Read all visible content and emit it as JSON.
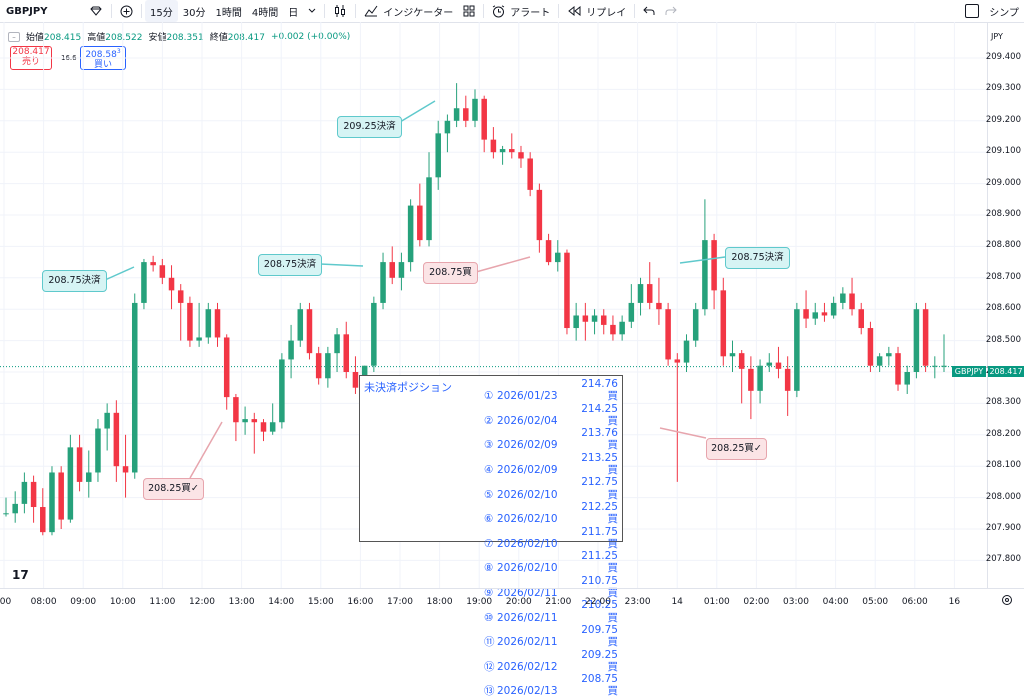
{
  "toolbar": {
    "symbol": "GBPJPY",
    "timeframes": [
      "15分",
      "30分",
      "1時間",
      "4時間",
      "日"
    ],
    "active_timeframe": 0,
    "indicators_label": "インジケーター",
    "alert_label": "アラート",
    "replay_label": "リプレイ",
    "simple_label": "シンプ"
  },
  "ohlc": {
    "open_label": "始値",
    "open": "208.415",
    "high_label": "高値",
    "high": "208.522",
    "low_label": "安値",
    "low": "208.351",
    "close_label": "終値",
    "close": "208.417",
    "change": "+0.002 (+0.00%)"
  },
  "trade": {
    "sell_price": "208.417",
    "sell_label": "売り",
    "spread": "16.6",
    "buy_price": "208.58",
    "buy_sup": "3",
    "buy_label": "買い"
  },
  "price_axis": {
    "currency": "JPY",
    "ticks": [
      "209.400",
      "209.300",
      "209.200",
      "209.100",
      "209.000",
      "208.900",
      "208.800",
      "208.700",
      "208.600",
      "208.500",
      "208.400",
      "208.300",
      "208.200",
      "208.100",
      "208.000",
      "207.900",
      "207.800"
    ],
    "current_symbol": "GBPJPY",
    "current_price": "208.417"
  },
  "time_axis": {
    "ticks": [
      ":00",
      "08:00",
      "09:00",
      "10:00",
      "11:00",
      "12:00",
      "13:00",
      "14:00",
      "15:00",
      "16:00",
      "17:00",
      "18:00",
      "19:00",
      "20:00",
      "21:00",
      "22:00",
      "23:00",
      "14",
      "01:00",
      "02:00",
      "03:00",
      "04:00",
      "05:00",
      "06:00",
      "16"
    ]
  },
  "annotations": [
    {
      "text": "208.75決済",
      "kind": "close"
    },
    {
      "text": "208.25買✓",
      "kind": "open"
    },
    {
      "text": "208.75決済",
      "kind": "close"
    },
    {
      "text": "209.25決済",
      "kind": "close"
    },
    {
      "text": "208.75買",
      "kind": "open"
    },
    {
      "text": "208.75決済",
      "kind": "close"
    },
    {
      "text": "208.25買✓",
      "kind": "open"
    }
  ],
  "positions": {
    "title": "未決済ポジション",
    "rows": [
      {
        "n": "①",
        "date": "2026/01/23",
        "price": "214.76買"
      },
      {
        "n": "②",
        "date": "2026/02/04",
        "price": "214.25買"
      },
      {
        "n": "③",
        "date": "2026/02/09",
        "price": "213.76買"
      },
      {
        "n": "④",
        "date": "2026/02/09",
        "price": "213.25買"
      },
      {
        "n": "⑤",
        "date": "2026/02/10",
        "price": "212.75買"
      },
      {
        "n": "⑥",
        "date": "2026/02/10",
        "price": "212.25買"
      },
      {
        "n": "⑦",
        "date": "2026/02/10",
        "price": "211.75買"
      },
      {
        "n": "⑧",
        "date": "2026/02/10",
        "price": "211.25買"
      },
      {
        "n": "⑨",
        "date": "2026/02/11",
        "price": "210.75買"
      },
      {
        "n": "⑩",
        "date": "2026/02/11",
        "price": "210.25買"
      },
      {
        "n": "⑪",
        "date": "2026/02/11",
        "price": "209.75買"
      },
      {
        "n": "⑫",
        "date": "2026/02/12",
        "price": "209.25買"
      },
      {
        "n": "⑬",
        "date": "2026/02/13",
        "price": "208.75買"
      }
    ]
  },
  "colors": {
    "up": "#26a17b",
    "down": "#f23645",
    "callout_close": "#5fc9cc",
    "callout_open": "#e7a5ad",
    "position_text": "#2962ff"
  },
  "chart_data": {
    "type": "candlestick",
    "symbol": "GBPJPY",
    "interval": "15分",
    "ylim": [
      207.75,
      209.45
    ],
    "candles": [
      [
        207.95,
        208.0,
        207.94,
        207.95
      ],
      [
        207.95,
        208.02,
        207.92,
        207.98
      ],
      [
        207.98,
        208.08,
        207.95,
        208.05
      ],
      [
        208.05,
        208.07,
        207.92,
        207.97
      ],
      [
        207.97,
        208.03,
        207.88,
        207.89
      ],
      [
        207.89,
        208.1,
        207.88,
        208.08
      ],
      [
        208.08,
        208.1,
        207.9,
        207.93
      ],
      [
        207.93,
        208.2,
        207.92,
        208.16
      ],
      [
        208.16,
        208.2,
        208.02,
        208.05
      ],
      [
        208.05,
        208.15,
        208.0,
        208.08
      ],
      [
        208.08,
        208.25,
        208.05,
        208.22
      ],
      [
        208.22,
        208.3,
        208.15,
        208.27
      ],
      [
        208.27,
        208.31,
        208.05,
        208.1
      ],
      [
        208.1,
        208.2,
        208.0,
        208.08
      ],
      [
        208.08,
        208.65,
        208.06,
        208.62
      ],
      [
        208.62,
        208.76,
        208.6,
        208.75
      ],
      [
        208.75,
        208.77,
        208.72,
        208.74
      ],
      [
        208.74,
        208.76,
        208.68,
        208.7
      ],
      [
        208.7,
        208.74,
        208.6,
        208.66
      ],
      [
        208.66,
        208.68,
        208.5,
        208.62
      ],
      [
        208.62,
        208.64,
        208.48,
        208.5
      ],
      [
        208.5,
        208.62,
        208.48,
        208.51
      ],
      [
        208.51,
        208.62,
        208.49,
        208.6
      ],
      [
        208.6,
        208.62,
        208.48,
        208.51
      ],
      [
        208.51,
        208.52,
        208.28,
        208.32
      ],
      [
        208.32,
        208.33,
        208.18,
        208.24
      ],
      [
        208.24,
        208.29,
        208.2,
        208.25
      ],
      [
        208.25,
        208.27,
        208.14,
        208.24
      ],
      [
        208.24,
        208.25,
        208.18,
        208.21
      ],
      [
        208.21,
        208.3,
        208.2,
        208.24
      ],
      [
        208.24,
        208.46,
        208.22,
        208.44
      ],
      [
        208.44,
        208.55,
        208.38,
        208.5
      ],
      [
        208.5,
        208.62,
        208.48,
        208.6
      ],
      [
        208.6,
        208.62,
        208.44,
        208.46
      ],
      [
        208.46,
        208.48,
        208.36,
        208.38
      ],
      [
        208.38,
        208.48,
        208.35,
        208.46
      ],
      [
        208.46,
        208.54,
        208.4,
        208.52
      ],
      [
        208.52,
        208.56,
        208.38,
        208.4
      ],
      [
        208.4,
        208.45,
        208.33,
        208.35
      ],
      [
        208.35,
        208.42,
        208.3,
        208.42
      ],
      [
        208.42,
        208.64,
        208.4,
        208.62
      ],
      [
        208.62,
        208.78,
        208.6,
        208.75
      ],
      [
        208.75,
        208.8,
        208.68,
        208.7
      ],
      [
        208.7,
        208.78,
        208.66,
        208.75
      ],
      [
        208.75,
        208.95,
        208.72,
        208.93
      ],
      [
        208.93,
        209.0,
        208.8,
        208.82
      ],
      [
        208.82,
        209.1,
        208.8,
        209.02
      ],
      [
        209.02,
        209.2,
        208.98,
        209.16
      ],
      [
        209.16,
        209.22,
        209.1,
        209.2
      ],
      [
        209.2,
        209.32,
        209.18,
        209.24
      ],
      [
        209.24,
        209.28,
        209.18,
        209.2
      ],
      [
        209.2,
        209.3,
        209.18,
        209.27
      ],
      [
        209.27,
        209.28,
        209.1,
        209.14
      ],
      [
        209.14,
        209.18,
        209.08,
        209.1
      ],
      [
        209.1,
        209.12,
        209.06,
        209.11
      ],
      [
        209.11,
        209.16,
        209.08,
        209.1
      ],
      [
        209.1,
        209.12,
        209.05,
        209.08
      ],
      [
        209.08,
        209.1,
        208.96,
        208.98
      ],
      [
        208.98,
        209.0,
        208.78,
        208.82
      ],
      [
        208.82,
        208.84,
        208.74,
        208.75
      ],
      [
        208.75,
        208.82,
        208.72,
        208.78
      ],
      [
        208.78,
        208.79,
        208.52,
        208.54
      ],
      [
        208.54,
        208.62,
        208.5,
        208.58
      ],
      [
        208.58,
        208.62,
        208.5,
        208.56
      ],
      [
        208.56,
        208.6,
        208.52,
        208.58
      ],
      [
        208.58,
        208.6,
        208.52,
        208.55
      ],
      [
        208.55,
        208.58,
        208.5,
        208.52
      ],
      [
        208.52,
        208.58,
        208.5,
        208.56
      ],
      [
        208.56,
        208.68,
        208.54,
        208.62
      ],
      [
        208.62,
        208.7,
        208.58,
        208.68
      ],
      [
        208.68,
        208.75,
        208.6,
        208.62
      ],
      [
        208.62,
        208.7,
        208.55,
        208.6
      ],
      [
        208.6,
        208.62,
        208.42,
        208.44
      ],
      [
        208.44,
        208.46,
        208.05,
        208.43
      ],
      [
        208.43,
        208.52,
        208.4,
        208.5
      ],
      [
        208.5,
        208.62,
        208.48,
        208.6
      ],
      [
        208.6,
        208.95,
        208.58,
        208.82
      ],
      [
        208.82,
        208.84,
        208.6,
        208.66
      ],
      [
        208.66,
        208.7,
        208.42,
        208.45
      ],
      [
        208.45,
        208.5,
        208.4,
        208.46
      ],
      [
        208.46,
        208.47,
        208.3,
        208.41
      ],
      [
        208.41,
        208.45,
        208.25,
        208.34
      ],
      [
        208.34,
        208.44,
        208.3,
        208.42
      ],
      [
        208.42,
        208.46,
        208.4,
        208.43
      ],
      [
        208.43,
        208.48,
        208.38,
        208.41
      ],
      [
        208.41,
        208.45,
        208.26,
        208.34
      ],
      [
        208.34,
        208.62,
        208.32,
        208.6
      ],
      [
        208.6,
        208.66,
        208.54,
        208.57
      ],
      [
        208.57,
        208.62,
        208.55,
        208.59
      ],
      [
        208.59,
        208.62,
        208.56,
        208.58
      ],
      [
        208.58,
        208.64,
        208.57,
        208.62
      ],
      [
        208.62,
        208.67,
        208.6,
        208.65
      ],
      [
        208.65,
        208.7,
        208.58,
        208.6
      ],
      [
        208.6,
        208.62,
        208.52,
        208.54
      ],
      [
        208.54,
        208.56,
        208.4,
        208.42
      ],
      [
        208.42,
        208.46,
        208.4,
        208.45
      ],
      [
        208.45,
        208.48,
        208.42,
        208.46
      ],
      [
        208.46,
        208.48,
        208.34,
        208.36
      ],
      [
        208.36,
        208.42,
        208.33,
        208.4
      ],
      [
        208.4,
        208.62,
        208.38,
        208.6
      ],
      [
        208.6,
        208.62,
        208.4,
        208.42
      ],
      [
        208.42,
        208.45,
        208.38,
        208.42
      ],
      [
        208.42,
        208.52,
        208.4,
        208.42
      ]
    ]
  }
}
